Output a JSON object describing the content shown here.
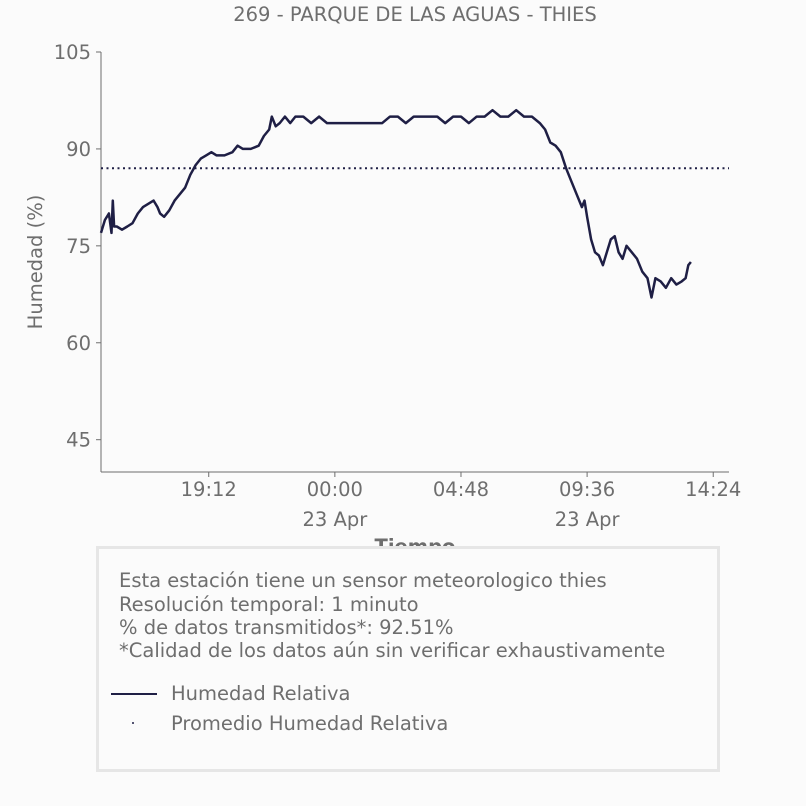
{
  "chart_data": {
    "type": "line",
    "title": "269 - PARQUE DE LAS AGUAS - THIES",
    "xlabel": "Tiempo",
    "ylabel": "Humedad (%)",
    "ylim": [
      40,
      105
    ],
    "yticks": [
      45,
      60,
      75,
      90,
      105
    ],
    "xticks": [
      {
        "t": 3.2,
        "label": "19:12",
        "sub": ""
      },
      {
        "t": 8.0,
        "label": "00:00",
        "sub": "23 Apr"
      },
      {
        "t": 12.8,
        "label": "04:48",
        "sub": ""
      },
      {
        "t": 17.6,
        "label": "09:36",
        "sub": "23 Apr"
      },
      {
        "t": 22.4,
        "label": "14:24",
        "sub": ""
      }
    ],
    "xlim": [
      -0.9,
      23.0
    ],
    "grid": false,
    "series": [
      {
        "name": "Humedad Relativa",
        "color": "#1f1f45",
        "style": "solid",
        "points": [
          [
            -0.9,
            77
          ],
          [
            -0.75,
            79
          ],
          [
            -0.6,
            80
          ],
          [
            -0.5,
            77
          ],
          [
            -0.45,
            82
          ],
          [
            -0.4,
            78
          ],
          [
            -0.3,
            78
          ],
          [
            -0.1,
            77.5
          ],
          [
            0.1,
            78
          ],
          [
            0.3,
            78.5
          ],
          [
            0.5,
            80
          ],
          [
            0.7,
            81
          ],
          [
            0.9,
            81.5
          ],
          [
            1.1,
            82
          ],
          [
            1.25,
            81
          ],
          [
            1.35,
            80
          ],
          [
            1.5,
            79.5
          ],
          [
            1.7,
            80.5
          ],
          [
            1.9,
            82
          ],
          [
            2.1,
            83
          ],
          [
            2.3,
            84
          ],
          [
            2.5,
            86
          ],
          [
            2.7,
            87.5
          ],
          [
            2.9,
            88.5
          ],
          [
            3.1,
            89
          ],
          [
            3.3,
            89.5
          ],
          [
            3.5,
            89
          ],
          [
            3.8,
            89
          ],
          [
            4.1,
            89.5
          ],
          [
            4.3,
            90.5
          ],
          [
            4.5,
            90
          ],
          [
            4.8,
            90
          ],
          [
            5.1,
            90.5
          ],
          [
            5.3,
            92
          ],
          [
            5.5,
            93
          ],
          [
            5.6,
            95
          ],
          [
            5.75,
            93.5
          ],
          [
            5.9,
            94
          ],
          [
            6.1,
            95
          ],
          [
            6.3,
            94
          ],
          [
            6.5,
            95
          ],
          [
            6.8,
            95
          ],
          [
            7.1,
            94
          ],
          [
            7.4,
            95
          ],
          [
            7.7,
            94
          ],
          [
            8.0,
            94
          ],
          [
            8.3,
            94
          ],
          [
            8.6,
            94
          ],
          [
            8.9,
            94
          ],
          [
            9.2,
            94
          ],
          [
            9.5,
            94
          ],
          [
            9.8,
            94
          ],
          [
            10.1,
            95
          ],
          [
            10.4,
            95
          ],
          [
            10.7,
            94
          ],
          [
            11.0,
            95
          ],
          [
            11.3,
            95
          ],
          [
            11.6,
            95
          ],
          [
            11.9,
            95
          ],
          [
            12.2,
            94
          ],
          [
            12.5,
            95
          ],
          [
            12.8,
            95
          ],
          [
            13.1,
            94
          ],
          [
            13.4,
            95
          ],
          [
            13.7,
            95
          ],
          [
            14.0,
            96
          ],
          [
            14.3,
            95
          ],
          [
            14.6,
            95
          ],
          [
            14.9,
            96
          ],
          [
            15.2,
            95
          ],
          [
            15.5,
            95
          ],
          [
            15.8,
            94
          ],
          [
            16.0,
            93
          ],
          [
            16.2,
            91
          ],
          [
            16.4,
            90.5
          ],
          [
            16.6,
            89.5
          ],
          [
            16.8,
            87
          ],
          [
            17.0,
            85
          ],
          [
            17.2,
            83
          ],
          [
            17.4,
            81
          ],
          [
            17.5,
            82
          ],
          [
            17.6,
            79.5
          ],
          [
            17.75,
            76
          ],
          [
            17.9,
            74
          ],
          [
            18.05,
            73.5
          ],
          [
            18.2,
            72
          ],
          [
            18.35,
            74
          ],
          [
            18.5,
            76
          ],
          [
            18.65,
            76.5
          ],
          [
            18.8,
            74
          ],
          [
            18.95,
            73
          ],
          [
            19.1,
            75
          ],
          [
            19.3,
            74
          ],
          [
            19.5,
            73
          ],
          [
            19.7,
            71
          ],
          [
            19.9,
            70
          ],
          [
            20.05,
            67
          ],
          [
            20.2,
            70
          ],
          [
            20.4,
            69.5
          ],
          [
            20.6,
            68.5
          ],
          [
            20.8,
            70
          ],
          [
            21.0,
            69
          ],
          [
            21.2,
            69.5
          ],
          [
            21.35,
            70
          ],
          [
            21.45,
            72
          ],
          [
            21.55,
            72.5
          ]
        ]
      },
      {
        "name": "Promedio Humedad Relativa",
        "color": "#1f1f45",
        "style": "dotted",
        "value": 87
      }
    ]
  },
  "legend": {
    "info_lines": [
      "Esta estación tiene un sensor meteorologico thies",
      "Resolución temporal: 1 minuto",
      "% de datos transmitidos*: 92.51%",
      "*Calidad de los datos aún sin verificar exhaustivamente"
    ],
    "items": [
      {
        "label": "Humedad Relativa"
      },
      {
        "label": "Promedio Humedad Relativa"
      }
    ]
  }
}
